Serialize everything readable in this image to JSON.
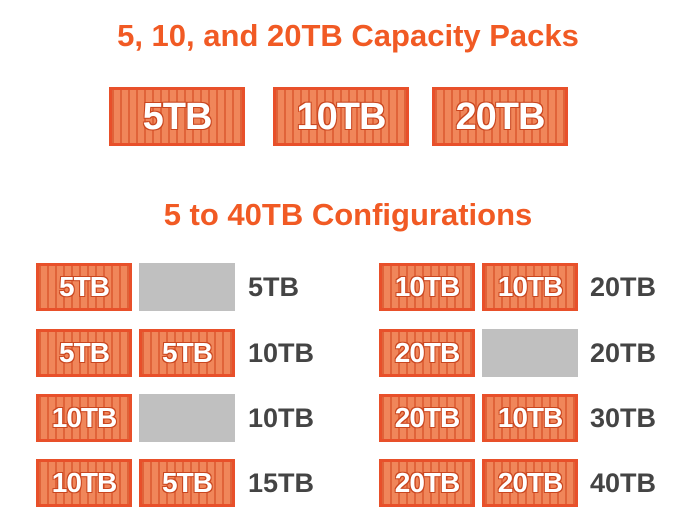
{
  "titles": {
    "main": "5, 10, and 20TB Capacity Packs",
    "configurations": "5 to 40TB Configurations"
  },
  "capacity_packs": [
    "5TB",
    "10TB",
    "20TB"
  ],
  "configurations": {
    "left": [
      {
        "slot1": "5TB",
        "slot2": "",
        "total": "5TB"
      },
      {
        "slot1": "5TB",
        "slot2": "5TB",
        "total": "10TB"
      },
      {
        "slot1": "10TB",
        "slot2": "",
        "total": "10TB"
      },
      {
        "slot1": "10TB",
        "slot2": "5TB",
        "total": "15TB"
      }
    ],
    "right": [
      {
        "slot1": "10TB",
        "slot2": "10TB",
        "total": "20TB"
      },
      {
        "slot1": "20TB",
        "slot2": "",
        "total": "20TB"
      },
      {
        "slot1": "20TB",
        "slot2": "10TB",
        "total": "30TB"
      },
      {
        "slot1": "20TB",
        "slot2": "20TB",
        "total": "40TB"
      }
    ]
  },
  "colors": {
    "accent": "#f15a24",
    "pack_fill": "#f0865a",
    "pack_border": "#e8502a",
    "empty_slot": "#c0c0c0",
    "total_text": "#444444"
  }
}
